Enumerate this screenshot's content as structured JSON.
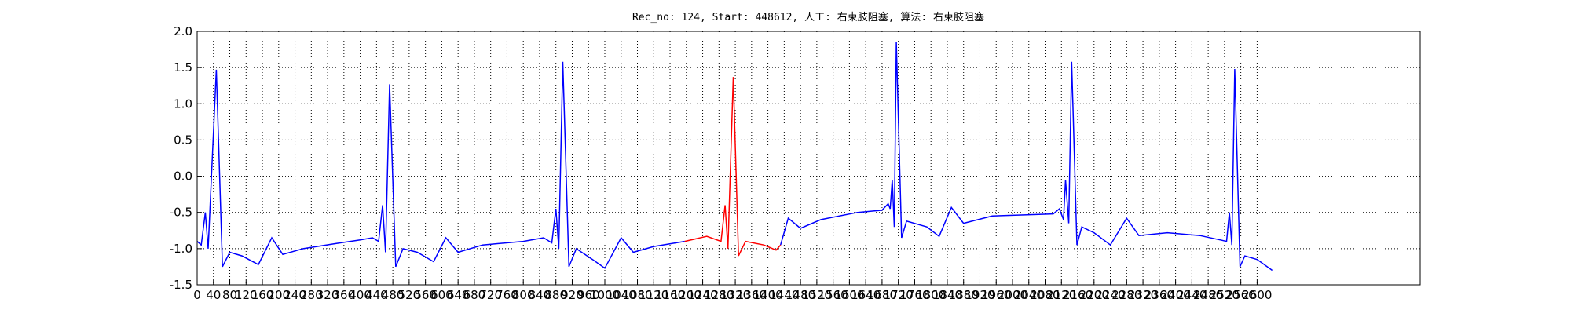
{
  "chart_data": {
    "type": "line",
    "title": "Rec_no: 124, Start: 448612, 人工: 右束肢阻塞, 算法: 右束肢阻塞",
    "xlim": [
      0,
      3000
    ],
    "xticks": [
      0,
      40,
      80,
      120,
      160,
      200,
      240,
      280,
      320,
      360,
      400,
      440,
      480,
      520,
      560,
      600,
      640,
      680,
      720,
      760,
      800,
      840,
      880,
      920,
      960,
      1000,
      1040,
      1080,
      1120,
      1160,
      1200,
      1240,
      1280,
      1320,
      1360,
      1400,
      1440,
      1480,
      1520,
      1560,
      1600,
      1640,
      1680,
      1720,
      1760,
      1800,
      1840,
      1880,
      1920,
      1960,
      2000,
      2040,
      2080,
      2120,
      2160,
      2200,
      2240,
      2280,
      2320,
      2360,
      2400,
      2440,
      2480,
      2520,
      2560,
      2600
    ],
    "ylim": [
      -1.5,
      2.0
    ],
    "yticks": [
      -1.5,
      {
        "value": -1.0,
        "label": "-1.0"
      },
      -0.5,
      {
        "value": 0.0,
        "label": "0.0"
      },
      0.5,
      {
        "value": 1.0,
        "label": "1.0"
      },
      1.5,
      {
        "value": 2.0,
        "label": "2.0"
      }
    ],
    "grid": true,
    "series": [
      {
        "color": "#0000ff",
        "x": [
          0,
          10,
          20,
          27,
          47,
          62,
          80,
          110,
          150,
          183,
          210,
          260,
          340,
          400,
          430,
          445,
          455,
          462,
          472,
          487,
          505,
          540,
          580,
          610,
          640,
          700,
          800,
          850,
          870,
          880,
          887,
          897,
          912,
          930,
          970,
          1000,
          1040,
          1070,
          1120,
          1196,
          1315,
          1431,
          1450,
          1480,
          1530,
          1620,
          1680,
          1695,
          1700,
          1705,
          1710,
          1715,
          1728,
          1740,
          1790,
          1820,
          1850,
          1880,
          1950,
          2050,
          2100,
          2115,
          2125,
          2130,
          2138,
          2145,
          2158,
          2170,
          2200,
          2240,
          2280,
          2310,
          2380,
          2460,
          2510,
          2525,
          2532,
          2538,
          2545,
          2558,
          2570,
          2600,
          2637
        ],
        "values": [
          -0.9,
          -0.95,
          -0.5,
          -1.0,
          1.47,
          -1.25,
          -1.05,
          -1.1,
          -1.22,
          -0.85,
          -1.08,
          -1.0,
          -0.93,
          -0.88,
          -0.85,
          -0.9,
          -0.4,
          -1.05,
          1.27,
          -1.25,
          -1.0,
          -1.05,
          -1.18,
          -0.85,
          -1.05,
          -0.95,
          -0.9,
          -0.85,
          -0.92,
          -0.45,
          -1.0,
          1.58,
          -1.25,
          -1.0,
          -1.15,
          -1.27,
          -0.85,
          -1.05,
          -0.97,
          -0.9,
          null,
          -0.95,
          -0.58,
          -0.72,
          -0.6,
          -0.5,
          -0.47,
          -0.38,
          -0.45,
          -0.05,
          -0.7,
          1.85,
          -0.85,
          -0.62,
          -0.7,
          -0.83,
          -0.43,
          -0.65,
          -0.55,
          -0.53,
          -0.52,
          -0.45,
          -0.6,
          -0.05,
          -0.65,
          1.58,
          -0.95,
          -0.7,
          -0.78,
          -0.95,
          -0.58,
          -0.82,
          -0.78,
          -0.82,
          -0.88,
          -0.9,
          -0.5,
          -0.95,
          1.48,
          -1.25,
          -1.1,
          -1.15,
          -1.3
        ]
      },
      {
        "color": "#ff0000",
        "x": [
          1196,
          1250,
          1285,
          1295,
          1302,
          1315,
          1328,
          1345,
          1390,
          1420,
          1431
        ],
        "values": [
          -0.9,
          -0.83,
          -0.9,
          -0.4,
          -1.0,
          1.37,
          -1.1,
          -0.9,
          -0.95,
          -1.02,
          -0.95
        ]
      }
    ]
  }
}
